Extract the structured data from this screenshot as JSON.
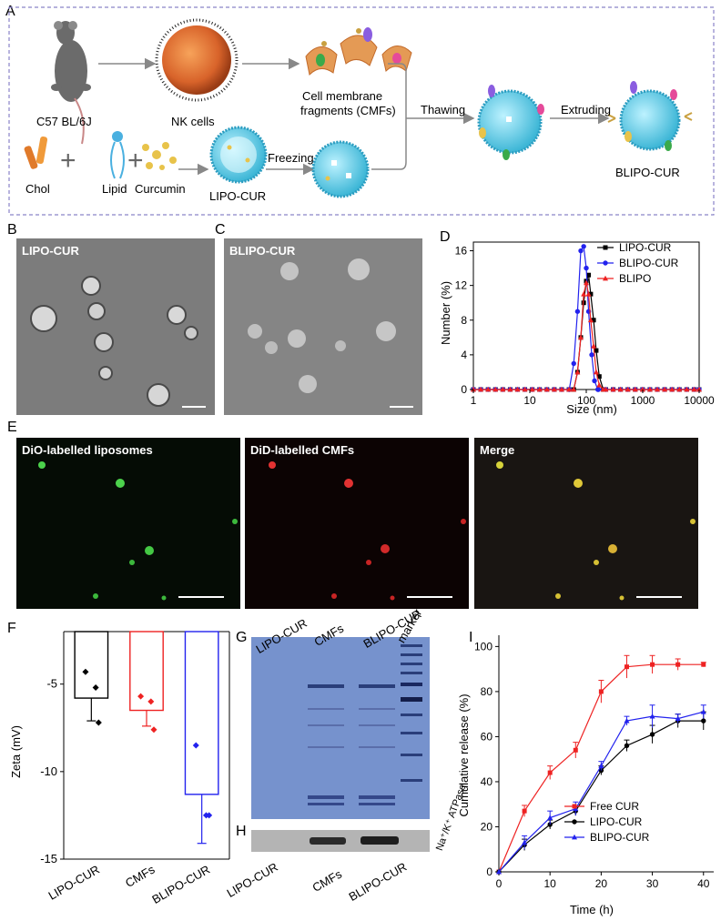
{
  "panel_labels": {
    "a": "A",
    "b": "B",
    "c": "C",
    "d": "D",
    "e": "E",
    "f": "F",
    "g": "G",
    "h": "H",
    "i": "I"
  },
  "schematic": {
    "mouse_label": "C57 BL/6J",
    "nk_label": "NK cells",
    "cmf_label_1": "Cell membrane",
    "cmf_label_2": "fragments (CMFs)",
    "thawing": "Thawing",
    "extruding": "Extruding",
    "chol": "Chol",
    "lipid": "Lipid",
    "curcumin": "Curcumin",
    "freezing": "Freezing",
    "lipo_cur": "LIPO-CUR",
    "blipo_cur": "BLIPO-CUR",
    "plus": "+"
  },
  "tem": {
    "b_label": "LIPO-CUR",
    "c_label": "BLIPO-CUR"
  },
  "fluorescence": {
    "p1": "DiO-labelled liposomes",
    "p2": "DiD-labelled CMFs",
    "p3": "Merge"
  },
  "gel": {
    "top_labels": [
      "LIPO-CUR",
      "CMFs",
      "BLIPO-CUR",
      "marker"
    ],
    "bottom_labels": [
      "LIPO-CUR",
      "CMFs",
      "BLIPO-CUR"
    ],
    "wb_label": "Na⁺/K⁺ ATPase"
  },
  "chart_data": [
    {
      "type": "line",
      "panel": "D",
      "xlabel": "Size (nm)",
      "ylabel": "Number (%)",
      "xscale": "log",
      "xlim": [
        1,
        10000
      ],
      "ylim": [
        0,
        17
      ],
      "xticks": [
        "1",
        "10",
        "100",
        "1000",
        "10000"
      ],
      "yticks": [
        "0",
        "4",
        "8",
        "12",
        "16"
      ],
      "legend_position": "top-right",
      "series": [
        {
          "name": "LIPO-CUR",
          "color": "#000000",
          "marker": "square",
          "points": [
            [
              1,
              0
            ],
            [
              60,
              0
            ],
            [
              70,
              2
            ],
            [
              80,
              6
            ],
            [
              90,
              10
            ],
            [
              100,
              12.5
            ],
            [
              110,
              13.2
            ],
            [
              120,
              11
            ],
            [
              135,
              8
            ],
            [
              150,
              4.5
            ],
            [
              170,
              1.5
            ],
            [
              200,
              0
            ],
            [
              10000,
              0
            ]
          ]
        },
        {
          "name": "BLIPO-CUR",
          "color": "#2222ee",
          "marker": "circle",
          "points": [
            [
              1,
              0
            ],
            [
              50,
              0
            ],
            [
              60,
              3
            ],
            [
              70,
              9
            ],
            [
              80,
              16
            ],
            [
              90,
              16.5
            ],
            [
              100,
              14
            ],
            [
              110,
              9
            ],
            [
              125,
              4
            ],
            [
              140,
              1
            ],
            [
              160,
              0
            ],
            [
              10000,
              0
            ]
          ]
        },
        {
          "name": "BLIPO",
          "color": "#ee2222",
          "marker": "triangle",
          "points": [
            [
              1,
              0
            ],
            [
              60,
              0
            ],
            [
              70,
              2
            ],
            [
              80,
              6
            ],
            [
              90,
              11
            ],
            [
              100,
              12.3
            ],
            [
              110,
              11
            ],
            [
              120,
              8
            ],
            [
              135,
              5
            ],
            [
              150,
              2
            ],
            [
              170,
              0.5
            ],
            [
              200,
              0
            ],
            [
              10000,
              0
            ]
          ]
        }
      ]
    },
    {
      "type": "bar",
      "panel": "F",
      "ylabel": "Zeta (mV)",
      "ylim": [
        -15,
        -2
      ],
      "yticks": [
        "-5",
        "-10",
        "-15"
      ],
      "categories": [
        "LIPO-CUR",
        "CMFs",
        "BLIPO-CUR"
      ],
      "values": [
        -5.8,
        -6.5,
        -11.3
      ],
      "errors": [
        1.3,
        0.9,
        2.8
      ],
      "colors": [
        "#000000",
        "#ee2222",
        "#2222ee"
      ],
      "points": [
        [
          -4.3,
          -5.2,
          -7.2
        ],
        [
          -5.7,
          -6.0,
          -7.6
        ],
        [
          -8.5,
          -12.5,
          -12.5
        ]
      ]
    },
    {
      "type": "line",
      "panel": "I",
      "xlabel": "Time (h)",
      "ylabel": "Cumulative release (%)",
      "xlim": [
        0,
        42
      ],
      "ylim": [
        0,
        105
      ],
      "xticks": [
        "0",
        "10",
        "20",
        "30",
        "40"
      ],
      "yticks": [
        "0",
        "20",
        "40",
        "60",
        "80",
        "100"
      ],
      "legend_position": "bottom-right",
      "series": [
        {
          "name": "Free CUR",
          "color": "#ee2222",
          "marker": "square",
          "x": [
            0,
            5,
            10,
            15,
            20,
            25,
            30,
            35,
            40
          ],
          "y": [
            0,
            27,
            44,
            54,
            80,
            91,
            92,
            92,
            92
          ],
          "err": [
            0,
            2.5,
            3,
            3.5,
            5,
            5,
            4,
            2.5,
            1
          ]
        },
        {
          "name": "LIPO-CUR",
          "color": "#000000",
          "marker": "circle",
          "x": [
            0,
            5,
            10,
            15,
            20,
            25,
            30,
            35,
            40
          ],
          "y": [
            0,
            12,
            21,
            27,
            45,
            56,
            61,
            67,
            67
          ],
          "err": [
            0,
            2.5,
            2,
            2,
            2,
            2.5,
            4,
            3,
            4
          ]
        },
        {
          "name": "BLIPO-CUR",
          "color": "#2222ee",
          "marker": "triangle",
          "x": [
            0,
            5,
            10,
            15,
            20,
            25,
            30,
            35,
            40
          ],
          "y": [
            0,
            13,
            24,
            28,
            47,
            67,
            69,
            68,
            71
          ],
          "err": [
            0,
            3,
            3,
            3,
            2,
            2,
            5,
            2,
            3
          ]
        }
      ]
    }
  ]
}
